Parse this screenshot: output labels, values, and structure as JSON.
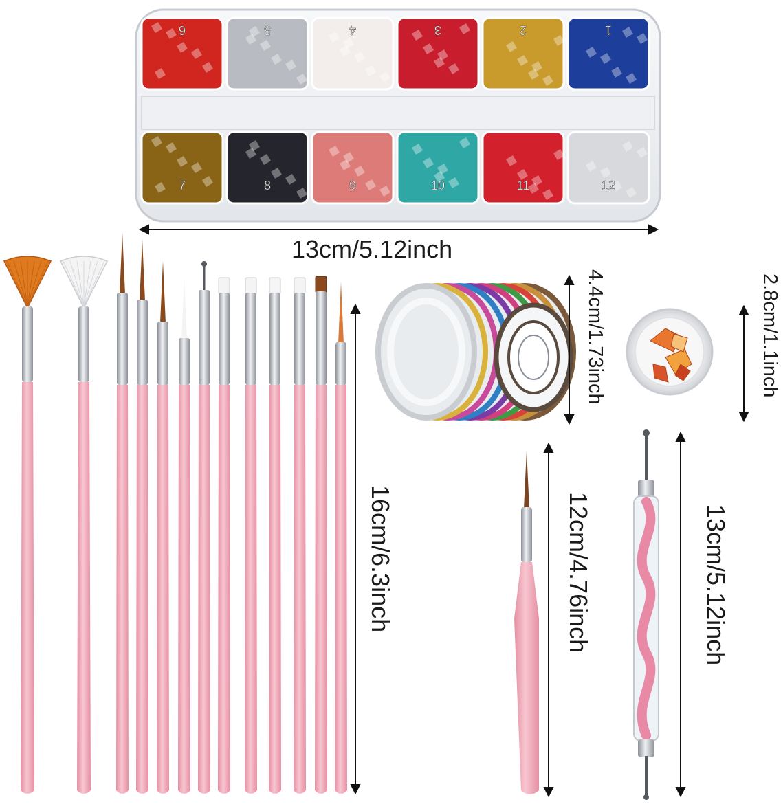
{
  "glitter_case": {
    "compartments_top": [
      {
        "number": "6",
        "color": "#d0261f"
      },
      {
        "number": "5",
        "color": "#b8bcc2"
      },
      {
        "number": "4",
        "color": "#f3eeec"
      },
      {
        "number": "3",
        "color": "#c81d2d"
      },
      {
        "number": "2",
        "color": "#c99a2c"
      },
      {
        "number": "1",
        "color": "#1d3e9a"
      }
    ],
    "compartments_bottom": [
      {
        "number": "7",
        "color": "#8a6416"
      },
      {
        "number": "8",
        "color": "#25262d"
      },
      {
        "number": "9",
        "color": "#dd7b78"
      },
      {
        "number": "10",
        "color": "#2fa7a5"
      },
      {
        "number": "11",
        "color": "#d2202c"
      },
      {
        "number": "12",
        "color": "#d7d9dc"
      }
    ]
  },
  "dimensions": {
    "case_width": "13cm/5.12inch",
    "tape_height": "4.4cm/1.73inch",
    "foil_jar_height": "2.8cm/1.1inch",
    "brush_length": "16cm/6.3inch",
    "liner_length": "12cm/4.76inch",
    "dotting_tool_length": "13cm/5.12inch"
  },
  "tape_colors": [
    "#c9ccd1",
    "#d9b23c",
    "#c94a9b",
    "#2f7fc4",
    "#7c3aa6",
    "#d23f80",
    "#3f9a45",
    "#d9413b",
    "#c8903a",
    "#7a5a3a"
  ],
  "colors": {
    "handle_pink": "#f2a9b9",
    "ferrule_silver": "#b9bcc2",
    "fan_orange": "#e07a1f",
    "bristle_brown": "#8a4a1e",
    "foil_orange": "#e8762e",
    "text": "#1a1a1a"
  }
}
